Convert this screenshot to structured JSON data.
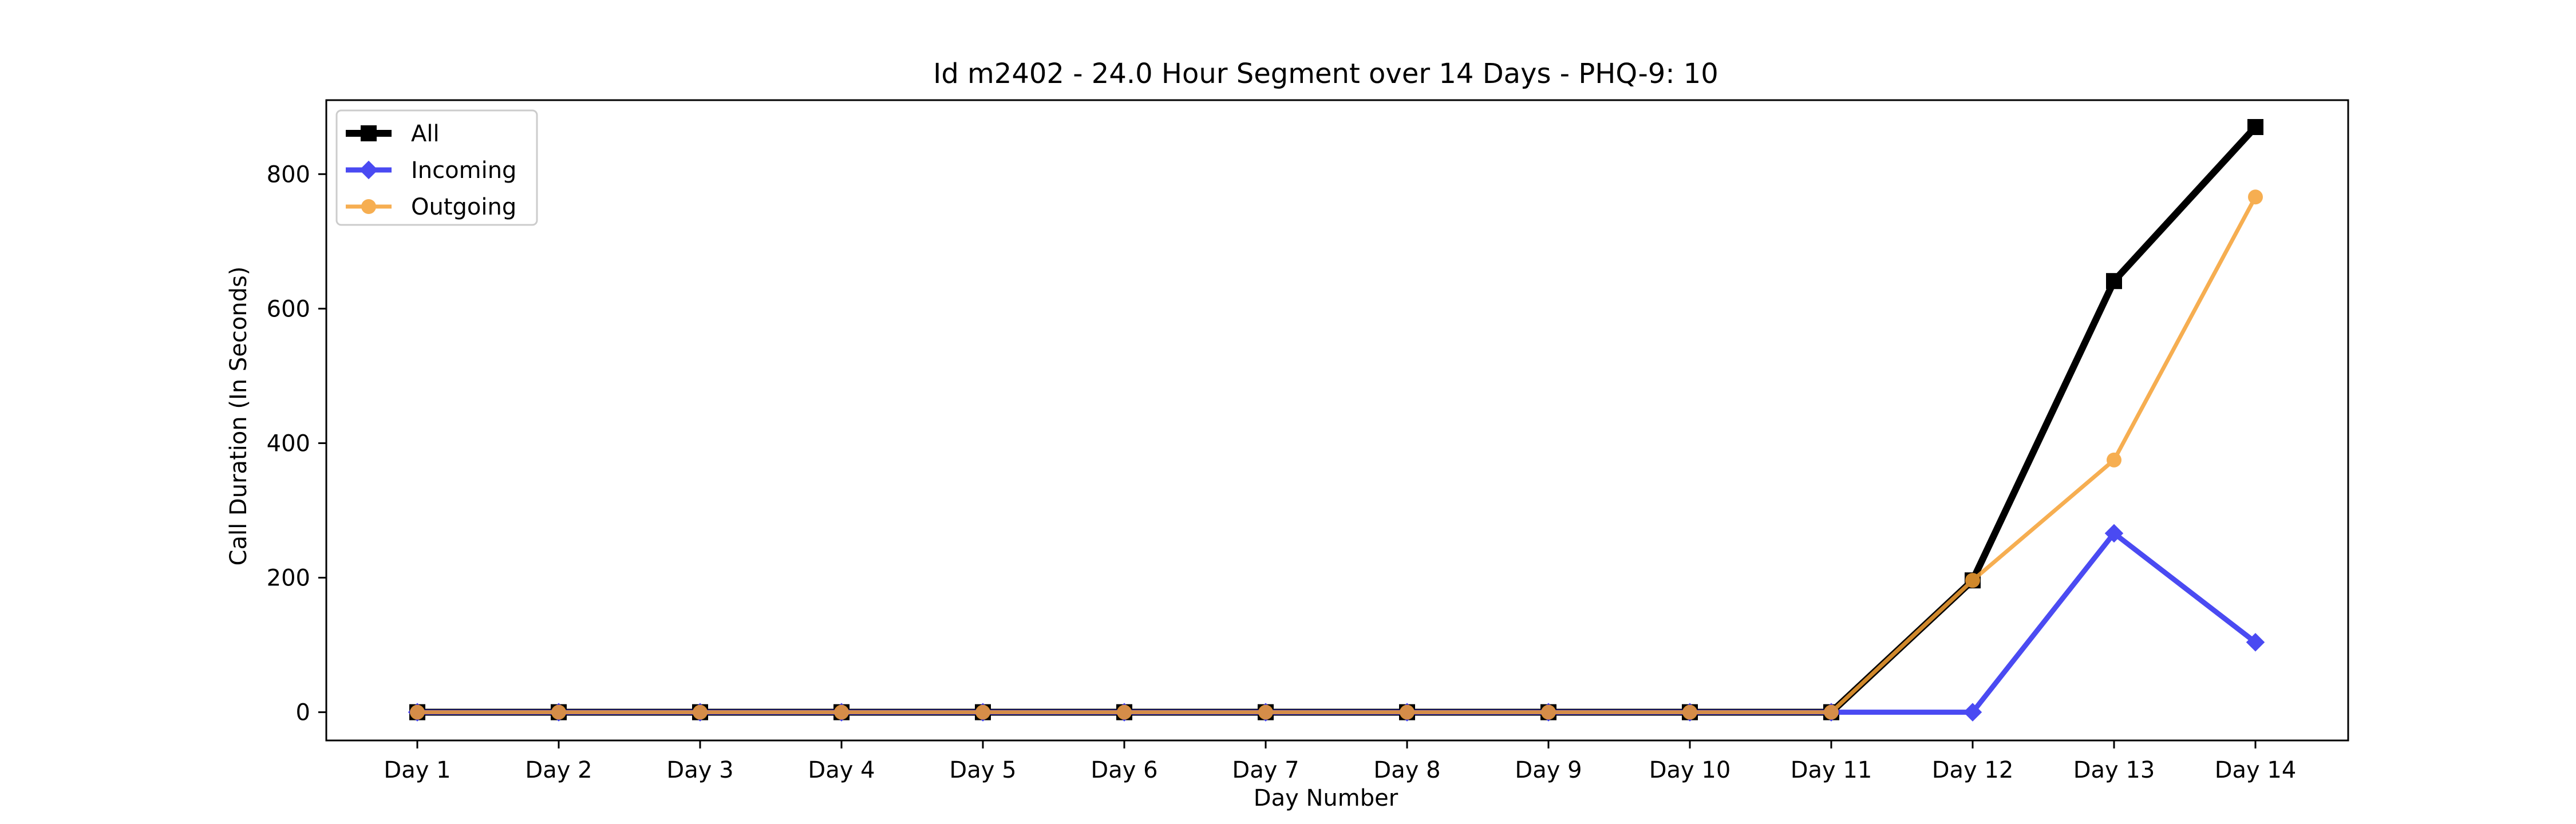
{
  "chart_data": {
    "type": "line",
    "title": "Id m2402 - 24.0 Hour Segment over 14 Days - PHQ-9: 10",
    "xlabel": "Day Number",
    "ylabel": "Call Duration (In Seconds)",
    "categories": [
      "Day 1",
      "Day 2",
      "Day 3",
      "Day 4",
      "Day 5",
      "Day 6",
      "Day 7",
      "Day 8",
      "Day 9",
      "Day 10",
      "Day 11",
      "Day 12",
      "Day 13",
      "Day 14"
    ],
    "y_ticks": [
      "0",
      "200",
      "400",
      "600",
      "800"
    ],
    "ylim": [
      -42,
      910
    ],
    "grid": false,
    "legend_position": "upper left",
    "series": [
      {
        "name": "All",
        "color": "#000000",
        "marker": "square",
        "values": [
          0,
          0,
          0,
          0,
          0,
          0,
          0,
          0,
          0,
          0,
          0,
          196,
          641,
          870
        ]
      },
      {
        "name": "Incoming",
        "color": "#2b2bf0",
        "marker": "diamond",
        "values": [
          0,
          0,
          0,
          0,
          0,
          0,
          0,
          0,
          0,
          0,
          0,
          0,
          266,
          104
        ]
      },
      {
        "name": "Outgoing",
        "color": "#f5a033",
        "marker": "circle",
        "values": [
          0,
          0,
          0,
          0,
          0,
          0,
          0,
          0,
          0,
          0,
          0,
          196,
          375,
          766
        ]
      }
    ]
  }
}
